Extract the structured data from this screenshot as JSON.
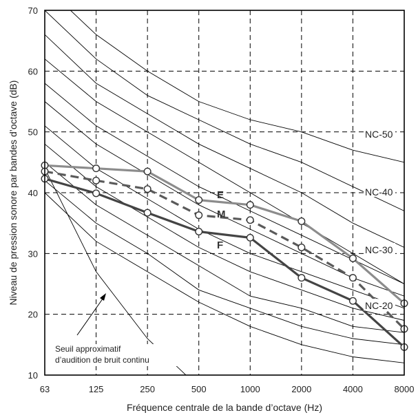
{
  "chart_data": {
    "type": "line",
    "xlabel": "Fréquence centrale de la bande d’octave (Hz)",
    "ylabel": "Niveau de pression sonore par bandes d’octave (dB)",
    "categories": [
      "63",
      "125",
      "250",
      "500",
      "1000",
      "2000",
      "4000",
      "8000"
    ],
    "ylim": [
      10,
      70
    ],
    "yticks": [
      "10",
      "20",
      "30",
      "40",
      "50",
      "60",
      "70"
    ],
    "grid": true,
    "nc_curve_labels": [
      {
        "name": "NC-50",
        "at_value": 49.5
      },
      {
        "name": "NC-40",
        "at_value": 40
      },
      {
        "name": "NC-30",
        "at_value": 30.5
      },
      {
        "name": "NC-20",
        "at_value": 21.3
      }
    ],
    "nc_curves": [
      {
        "id": "nc-1",
        "values": [
          62,
          55,
          50,
          45,
          40,
          35,
          30,
          25
        ]
      },
      {
        "id": "nc-2",
        "values": [
          66,
          58,
          53,
          48,
          44,
          40,
          35,
          31
        ]
      },
      {
        "id": "nc-3",
        "values": [
          70,
          62,
          56,
          52,
          48,
          45,
          41,
          37
        ]
      },
      {
        "id": "nc-4",
        "values": [
          74,
          66,
          60,
          55,
          52,
          50,
          47,
          45
        ]
      },
      {
        "id": "nc-5",
        "values": [
          58,
          51,
          46,
          41,
          37,
          33,
          29,
          25
        ]
      },
      {
        "id": "nc-6",
        "values": [
          55,
          48,
          43,
          38,
          34,
          30,
          26,
          23
        ]
      },
      {
        "id": "nc-7",
        "values": [
          51,
          44,
          39,
          34,
          30,
          27,
          24,
          21
        ]
      },
      {
        "id": "nc-8",
        "values": [
          48,
          41,
          36,
          31,
          27,
          24,
          21,
          19
        ]
      },
      {
        "id": "nc-9",
        "values": [
          45,
          38,
          33,
          28,
          23,
          21,
          18,
          17
        ]
      },
      {
        "id": "nc-10",
        "values": [
          42,
          35,
          30,
          24,
          21,
          18,
          16,
          15
        ]
      },
      {
        "id": "nc-11",
        "values": [
          40,
          32,
          27,
          22,
          18,
          15,
          13,
          12
        ]
      }
    ],
    "threshold_curve": {
      "values": [
        44,
        27,
        16,
        8
      ]
    },
    "series": [
      {
        "name": "E",
        "color": "#8c8c8c",
        "dash": false,
        "values": [
          44.5,
          44.0,
          43.5,
          38.8,
          38.0,
          35.3,
          29.2,
          21.8
        ]
      },
      {
        "name": "M",
        "color": "#5a5a5a",
        "dash": true,
        "values": [
          43.5,
          42.0,
          40.6,
          36.3,
          35.5,
          31.0,
          26.0,
          17.6
        ]
      },
      {
        "name": "F",
        "color": "#444444",
        "dash": false,
        "values": [
          42.3,
          39.9,
          36.7,
          33.6,
          32.6,
          26.0,
          22.2,
          14.6
        ]
      }
    ],
    "annotation": {
      "line1": "Seuil approximatif",
      "line2": "d’audition de bruit continu"
    }
  }
}
